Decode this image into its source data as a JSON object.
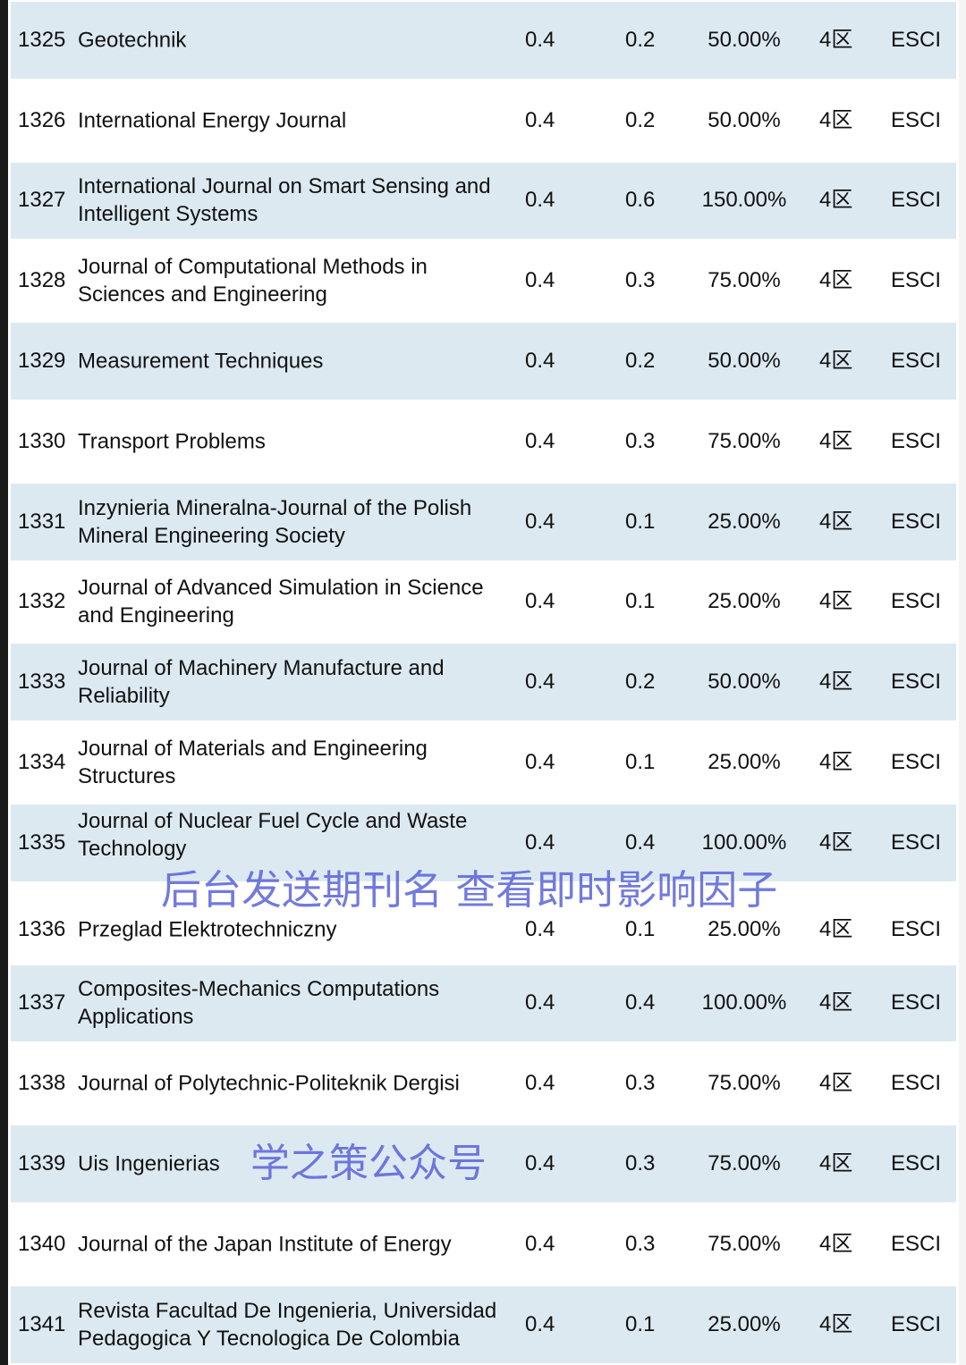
{
  "rows": [
    {
      "no": "1325",
      "name": "Geotechnik",
      "if1": "0.4",
      "if2": "0.2",
      "pct": "50.00%",
      "zone": "4区",
      "db": "ESCI"
    },
    {
      "no": "1326",
      "name": "International Energy Journal",
      "if1": "0.4",
      "if2": "0.2",
      "pct": "50.00%",
      "zone": "4区",
      "db": "ESCI"
    },
    {
      "no": "1327",
      "name": "International Journal on Smart Sensing and Intelligent Systems",
      "if1": "0.4",
      "if2": "0.6",
      "pct": "150.00%",
      "zone": "4区",
      "db": "ESCI"
    },
    {
      "no": "1328",
      "name": "Journal of Computational Methods in Sciences and Engineering",
      "if1": "0.4",
      "if2": "0.3",
      "pct": "75.00%",
      "zone": "4区",
      "db": "ESCI"
    },
    {
      "no": "1329",
      "name": "Measurement Techniques",
      "if1": "0.4",
      "if2": "0.2",
      "pct": "50.00%",
      "zone": "4区",
      "db": "ESCI"
    },
    {
      "no": "1330",
      "name": "Transport Problems",
      "if1": "0.4",
      "if2": "0.3",
      "pct": "75.00%",
      "zone": "4区",
      "db": "ESCI"
    },
    {
      "no": "1331",
      "name": "Inzynieria Mineralna-Journal of the Polish Mineral Engineering Society",
      "if1": "0.4",
      "if2": "0.1",
      "pct": "25.00%",
      "zone": "4区",
      "db": "ESCI"
    },
    {
      "no": "1332",
      "name": "Journal of Advanced Simulation in Science and Engineering",
      "if1": "0.4",
      "if2": "0.1",
      "pct": "25.00%",
      "zone": "4区",
      "db": "ESCI"
    },
    {
      "no": "1333",
      "name": "Journal of Machinery Manufacture and Reliability",
      "if1": "0.4",
      "if2": "0.2",
      "pct": "50.00%",
      "zone": "4区",
      "db": "ESCI"
    },
    {
      "no": "1334",
      "name": "Journal of Materials and Engineering Structures",
      "if1": "0.4",
      "if2": "0.1",
      "pct": "25.00%",
      "zone": "4区",
      "db": "ESCI"
    },
    {
      "no": "1335",
      "name": "Journal of Nuclear Fuel Cycle and Waste Technology",
      "if1": "0.4",
      "if2": "0.4",
      "pct": "100.00%",
      "zone": "4区",
      "db": "ESCI"
    },
    {
      "no": "1336",
      "name": "Przeglad Elektrotechniczny",
      "if1": "0.4",
      "if2": "0.1",
      "pct": "25.00%",
      "zone": "4区",
      "db": "ESCI"
    },
    {
      "no": "1337",
      "name": "Composites-Mechanics Computations Applications",
      "if1": "0.4",
      "if2": "0.4",
      "pct": "100.00%",
      "zone": "4区",
      "db": "ESCI"
    },
    {
      "no": "1338",
      "name": "Journal of Polytechnic-Politeknik Dergisi",
      "if1": "0.4",
      "if2": "0.3",
      "pct": "75.00%",
      "zone": "4区",
      "db": "ESCI"
    },
    {
      "no": "1339",
      "name": "Uis Ingenierias",
      "if1": "0.4",
      "if2": "0.3",
      "pct": "75.00%",
      "zone": "4区",
      "db": "ESCI"
    },
    {
      "no": "1340",
      "name": "Journal of the Japan Institute of Energy",
      "if1": "0.4",
      "if2": "0.3",
      "pct": "75.00%",
      "zone": "4区",
      "db": "ESCI"
    },
    {
      "no": "1341",
      "name": "Revista Facultad De Ingenieria, Universidad Pedagogica Y Tecnologica De Colombia",
      "if1": "0.4",
      "if2": "0.1",
      "pct": "25.00%",
      "zone": "4区",
      "db": "ESCI"
    }
  ],
  "watermark": {
    "top": "学之策公众号",
    "bottom": "后台发送期刊名 查看即时影响因子"
  }
}
